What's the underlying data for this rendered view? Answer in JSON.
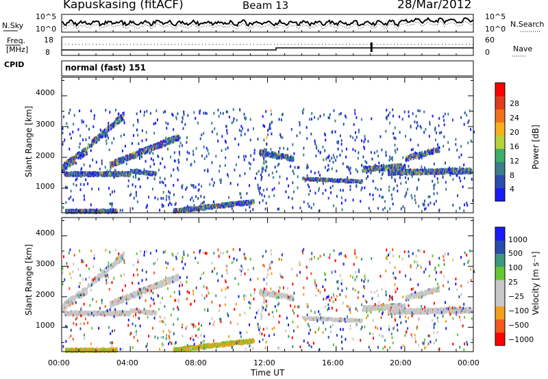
{
  "header": {
    "station": "Kapuskasing (fitACF)",
    "beam": "Beam 13",
    "date": "28/Mar/2012"
  },
  "noise_panel": {
    "left_label": "N.Sky",
    "right_label": "N.Search",
    "left_ticks": [
      "10^5",
      "10^0"
    ],
    "right_ticks": [
      "10^5",
      "10^0"
    ]
  },
  "freq_panel": {
    "left_label_1": "Freq.",
    "left_label_2": "[MHz]",
    "right_label": "Nave",
    "left_ticks": [
      "18",
      "8"
    ],
    "right_ticks": [
      "60",
      "0"
    ]
  },
  "cpid": {
    "label": "CPID",
    "value": "normal (fast) 151"
  },
  "xaxis": {
    "label": "Time UT",
    "ticks": [
      "00:00",
      "04:00",
      "08:00",
      "12:00",
      "16:00",
      "20:00",
      "00:00"
    ]
  },
  "colors": {
    "power": [
      "#1a1aff",
      "#2a4cae",
      "#3a7f8a",
      "#3fae6a",
      "#b8d23c",
      "#f6b21e",
      "#f0731b",
      "#e23b1d",
      "#ff0000"
    ],
    "velocity": [
      "#ff0000",
      "#f05a1c",
      "#f3a11d",
      "#c8c8c8",
      "#c8c8c8",
      "#64c832",
      "#3c9a78",
      "#2a4cae",
      "#1a1aff"
    ]
  },
  "chart_data": [
    {
      "type": "heatmap",
      "name": "power-panel",
      "ylabel": "Slant Range [km]",
      "yticks": [
        1000,
        2000,
        3000,
        4000
      ],
      "ylim": [
        200,
        4600
      ],
      "xlim": [
        0,
        24
      ],
      "colorbar": {
        "label": "Power [dB]",
        "ticks": [
          "4",
          "8",
          "12",
          "16",
          "20",
          "24",
          "28"
        ],
        "range": [
          0,
          30
        ]
      }
    },
    {
      "type": "heatmap",
      "name": "velocity-panel",
      "ylabel": "Slant Range [km]",
      "yticks": [
        1000,
        2000,
        3000,
        4000
      ],
      "ylim": [
        200,
        4600
      ],
      "xlim": [
        0,
        24
      ],
      "colorbar": {
        "label": "Velocity [m s⁻¹]",
        "ticks": [
          "1000",
          "500",
          "100",
          "25",
          "−25",
          "−100",
          "−500",
          "−1000"
        ]
      }
    }
  ]
}
